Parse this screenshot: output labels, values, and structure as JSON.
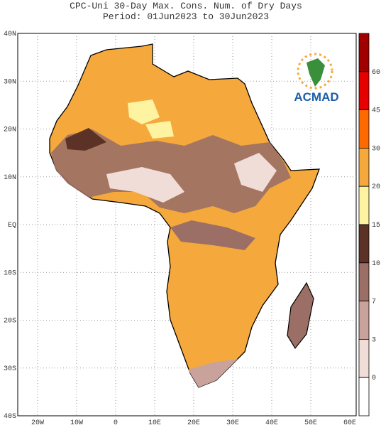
{
  "header": {
    "title": "CPC-Uni 30-Day Max. Cons. Num. of Dry Days",
    "period": "Period: 01Jun2023 to 30Jun2023"
  },
  "map": {
    "lat_labels": [
      "40N",
      "30N",
      "20N",
      "10N",
      "EQ",
      "10S",
      "20S",
      "30S",
      "40S"
    ],
    "lon_labels": [
      "20W",
      "10W",
      "0",
      "10E",
      "20E",
      "30E",
      "40E",
      "50E",
      "60E"
    ]
  },
  "logo": {
    "text": "ACMAD"
  },
  "colorbar": {
    "labels": [
      "60",
      "45",
      "30",
      "20",
      "15",
      "10",
      "7",
      "3",
      "0"
    ],
    "colors": [
      "#a00000",
      "#e60000",
      "#ff6a00",
      "#f5a93c",
      "#fdf3a0",
      "#5c3226",
      "#9b6f65",
      "#c9a29b",
      "#f1ddd8",
      "#ffffff"
    ]
  }
}
